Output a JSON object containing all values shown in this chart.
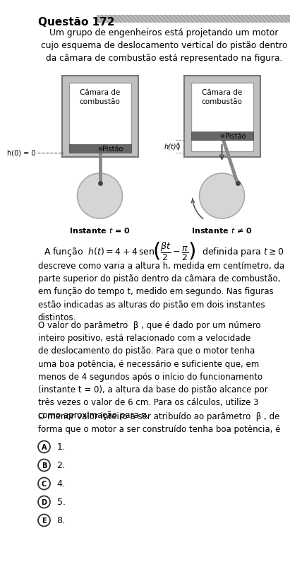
{
  "title": "Questão 172",
  "bg_color": "#ffffff",
  "intro_text": "Um grupo de engenheiros está projetando um motor\ncujo esquema de deslocamento vertical do pistão dentro\nda câmara de combustão está representado na figura.",
  "diagram_label_left": "Instante t = 0",
  "diagram_label_right": "Instante t ≠ 0",
  "chamber_label": "Câmara de\ncombustão",
  "piston_label": "Pistão",
  "h0_label": "h(0) = 0",
  "ht_label": "h(t)",
  "para1": "descreve como varia a altura h, medida em centímetro, da\nparte superior do pistão dentro da câmara de combustão,\nem função do tempo t, medido em segundo. Nas figuras\nestão indicadas as alturas do pistão em dois instantes\ndistintos.",
  "para2_indent": "O valor do parâmetro  β , que é dado por um número\ninteiro positivo, está relacionado com a velocidade\nde deslocamento do pistão. Para que o motor tenha\numa boa potência, é necessário e suficiente que, em\nmenos de 4 segundos após o início do funcionamento\n(instante t = 0), a altura da base do pistão alcance por\ntrês vezes o valor de 6 cm. Para os cálculos, utilize 3\ncomo aproximação para π.",
  "para3": "O menor valor inteiro a ser atribuído ao parâmetro  β , de\nforma que o motor a ser construído tenha boa potência, é",
  "opt_labels": [
    "A",
    "B",
    "C",
    "D",
    "E"
  ],
  "opt_values": [
    "1.",
    "2.",
    "4.",
    "5.",
    "8."
  ]
}
